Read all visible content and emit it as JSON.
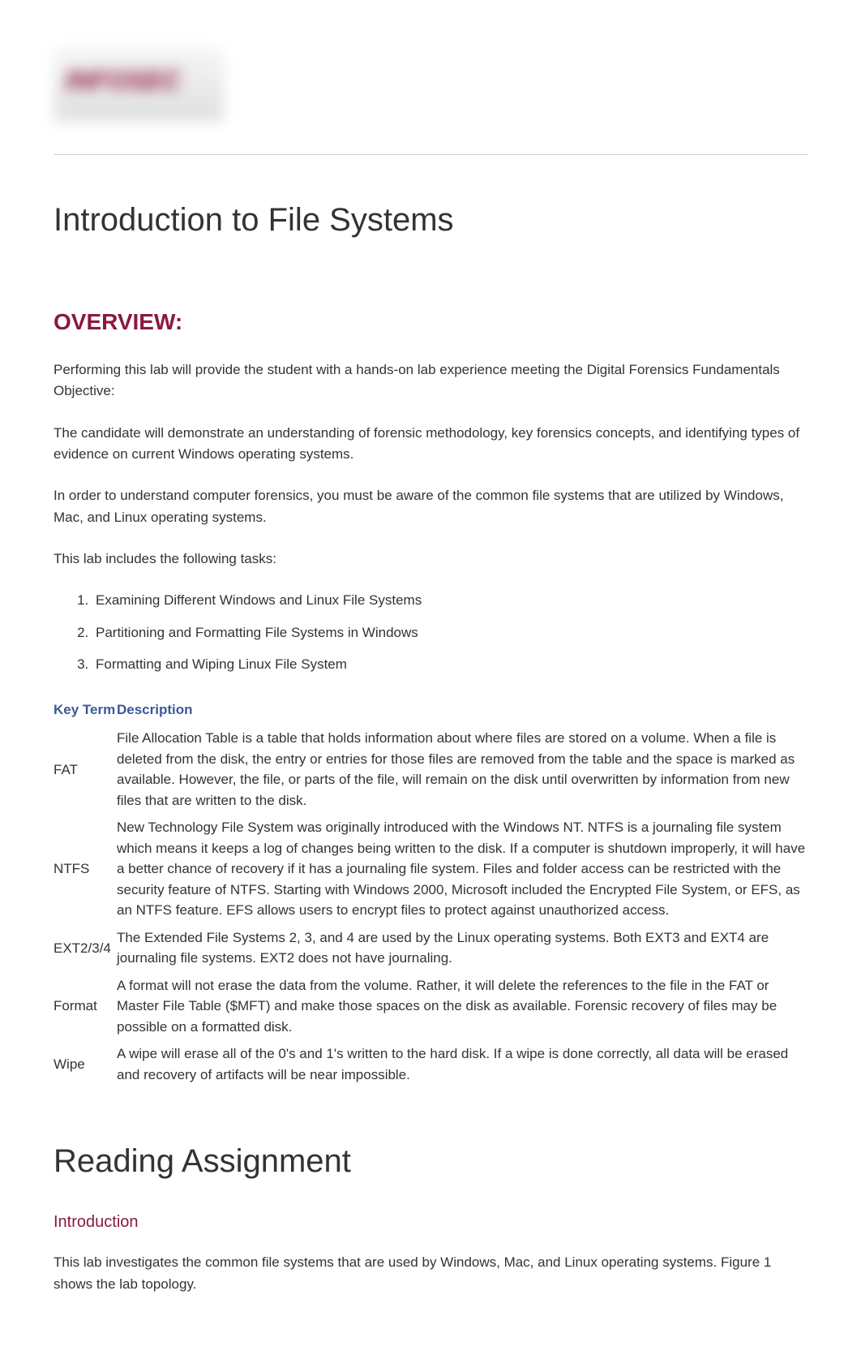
{
  "logo": {
    "text": "INFOSEC"
  },
  "page_title": "Introduction to File Systems",
  "overview": {
    "heading": "OVERVIEW:",
    "paragraphs": [
      "Performing this lab will provide the student with a hands-on lab experience meeting the Digital Forensics Fundamentals Objective:",
      "The candidate will demonstrate an understanding of forensic methodology, key forensics concepts, and identifying types of evidence on current Windows operating systems.",
      "In order to understand computer forensics, you must be aware of the common file systems that are utilized by Windows, Mac, and Linux operating systems.",
      "This lab includes the following tasks:"
    ],
    "tasks": [
      "Examining Different Windows and Linux File Systems",
      "Partitioning and Formatting File Systems in Windows",
      "Formatting and Wiping Linux File System"
    ]
  },
  "table": {
    "headers": {
      "term": "Key Term",
      "description": "Description"
    },
    "rows": [
      {
        "term": "FAT",
        "description": "File Allocation Table is a table that holds information about where files are stored on a volume. When a file is deleted from the disk, the entry or entries for those files are removed from the table and the space is marked as available. However, the file, or parts of the file, will remain on the disk until overwritten by information from new files that are written to the disk."
      },
      {
        "term": "NTFS",
        "description": "New Technology File System was originally introduced with the Windows NT. NTFS is a journaling file system which means it keeps a log of changes being written to the disk. If a computer is shutdown improperly, it will have a better chance of recovery if it has a journaling file system. Files and folder access can be restricted with the security feature of NTFS. Starting with Windows 2000, Microsoft included the Encrypted File System, or EFS, as an NTFS feature. EFS allows users to encrypt files to protect against unauthorized access."
      },
      {
        "term": "EXT2/3/4",
        "description": "The Extended File Systems 2, 3, and 4 are used by the Linux operating systems. Both EXT3 and EXT4 are journaling file systems. EXT2 does not have journaling."
      },
      {
        "term": "Format",
        "description": "A format will not erase the data from the volume. Rather, it will delete the references to the file in the FAT or Master File Table ($MFT) and make those spaces on the disk as available. Forensic recovery of files may be possible on a formatted disk."
      },
      {
        "term": "Wipe",
        "description": "A wipe will erase all of the 0's and 1's written to the hard disk. If a wipe is done correctly, all data will be erased and recovery of artifacts will be near impossible."
      }
    ]
  },
  "reading": {
    "heading": "Reading Assignment",
    "intro_heading": "Introduction",
    "intro_text": "This lab investigates the common file systems that are used by Windows, Mac, and Linux operating systems. Figure 1 shows the lab topology."
  },
  "colors": {
    "heading_accent": "#8b1a3a",
    "table_header": "#3b5998",
    "body_text": "#333333",
    "background": "#ffffff"
  }
}
